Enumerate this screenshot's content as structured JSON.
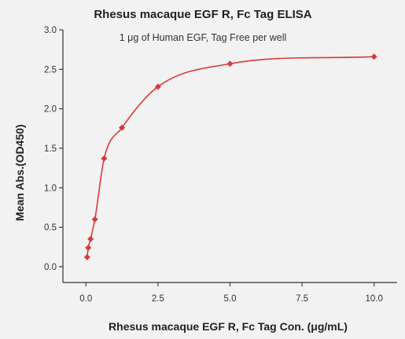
{
  "chart_data": {
    "type": "scatter",
    "title": "Rhesus macaque EGF R, Fc Tag ELISA",
    "subtitle": "1 μg of Human EGF, Tag Free per well",
    "xlabel": "Rhesus macaque EGF R, Fc Tag Con. (μg/mL)",
    "ylabel": "Mean Abs.(OD450)",
    "xlim": [
      -0.8,
      10.8
    ],
    "ylim": [
      -0.2,
      3.0
    ],
    "x_ticks": [
      "0.0",
      "2.5",
      "5.0",
      "7.5",
      "10.0"
    ],
    "y_ticks": [
      "0.0",
      "0.5",
      "1.0",
      "1.5",
      "2.0",
      "2.5",
      "3.0"
    ],
    "series": [
      {
        "x": [
          0.04,
          0.08,
          0.16,
          0.31,
          0.63,
          1.25,
          2.5,
          5.0,
          10.0
        ],
        "y": [
          0.12,
          0.24,
          0.35,
          0.6,
          1.37,
          1.76,
          2.28,
          2.57,
          2.66
        ],
        "color": "#d93a3a",
        "fit_curve": true
      }
    ],
    "grid": false,
    "legend": "none"
  }
}
